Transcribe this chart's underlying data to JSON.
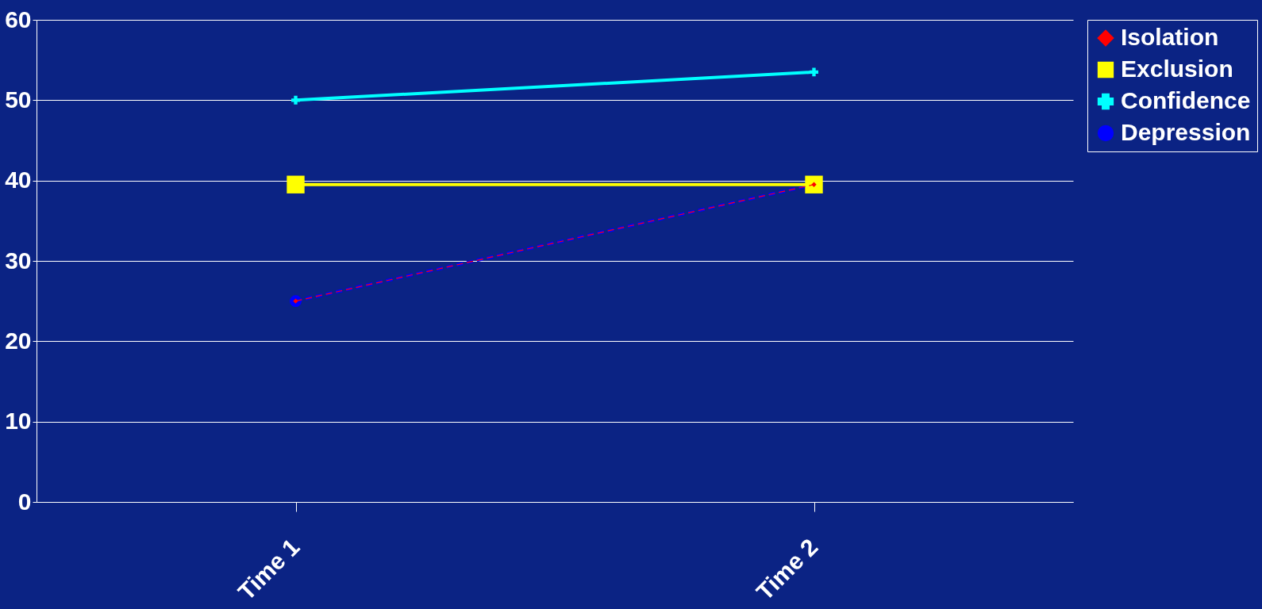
{
  "chart_data": {
    "type": "line",
    "categories": [
      "Time 1",
      "Time 2"
    ],
    "series": [
      {
        "name": "Isolation",
        "color": "#ff0000",
        "values": [
          25,
          39.5
        ],
        "marker": "diamond",
        "line_style": "dashed"
      },
      {
        "name": "Exclusion",
        "color": "#ffff00",
        "values": [
          39.5,
          39.5
        ],
        "marker": "square",
        "line_style": "solid"
      },
      {
        "name": "Confidence",
        "color": "#00ffff",
        "values": [
          50,
          53.5
        ],
        "marker": "cross",
        "line_style": "solid"
      },
      {
        "name": "Depression",
        "color": "#0000ff",
        "values": [
          25,
          39.5
        ],
        "marker": "circle",
        "line_style": "dashed"
      }
    ],
    "ylim": [
      0,
      60
    ],
    "yticks": [
      0,
      10,
      20,
      30,
      40,
      50,
      60
    ],
    "grid": "y",
    "legend": "right"
  }
}
